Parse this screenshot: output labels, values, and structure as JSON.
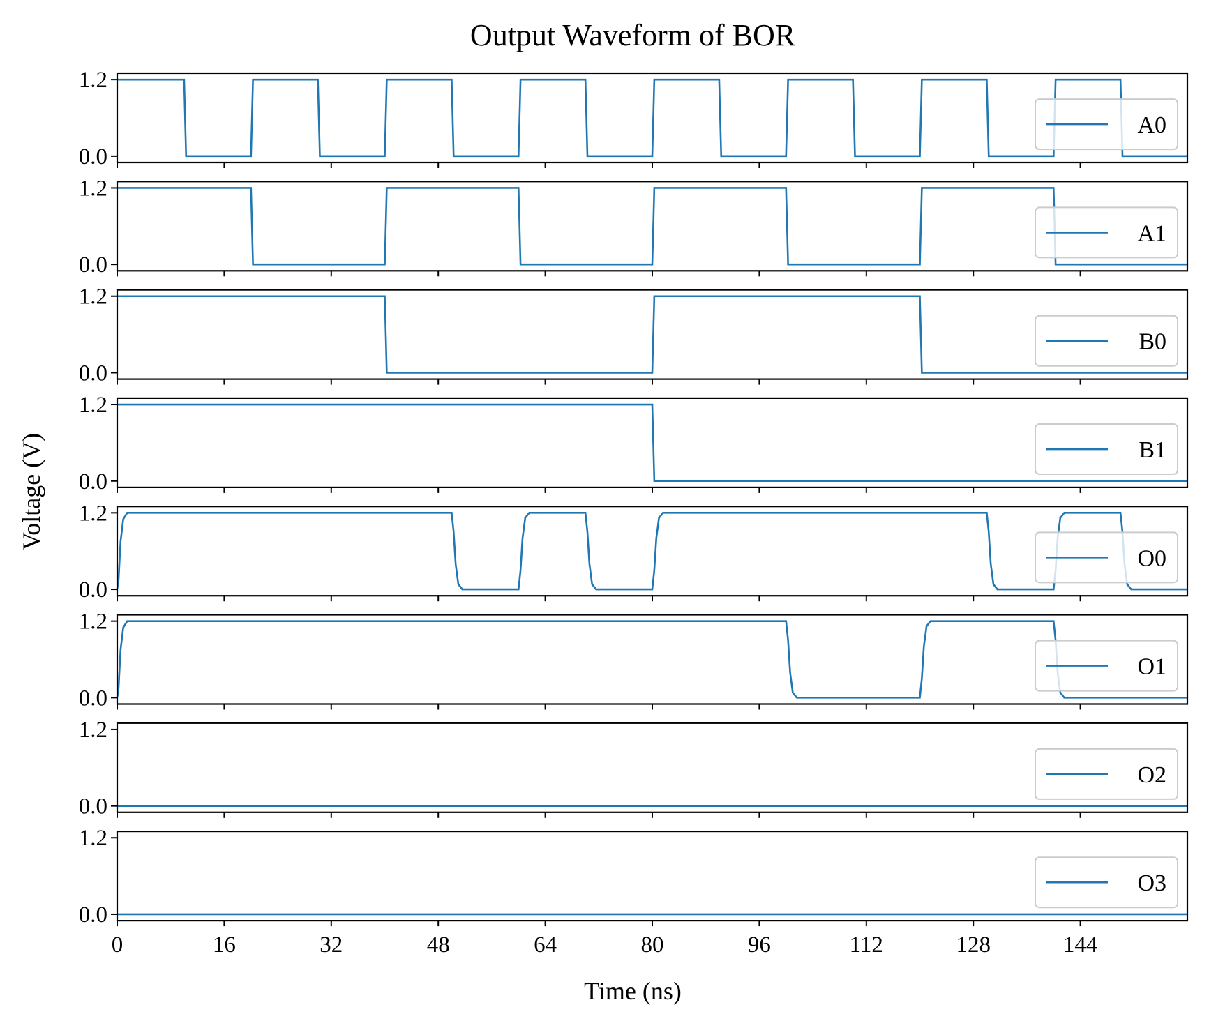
{
  "chart_data": {
    "type": "line",
    "title": "Output Waveform of BOR",
    "xlabel": "Time (ns)",
    "ylabel": "Voltage (V)",
    "xlim": [
      0,
      160
    ],
    "xticks": [
      0,
      16,
      32,
      48,
      64,
      80,
      96,
      112,
      128,
      144
    ],
    "ylim": [
      -0.1,
      1.3
    ],
    "yticks": [
      0.0,
      1.2
    ],
    "ytick_labels": [
      "0.0",
      "1.2"
    ],
    "grid": false,
    "legend_position": "center-right",
    "line_color": "#1f77b4",
    "series": [
      {
        "name": "A0",
        "x": [
          0,
          10,
          10.3,
          20,
          20.3,
          30,
          30.3,
          40,
          40.3,
          50,
          50.3,
          60,
          60.3,
          70,
          70.3,
          80,
          80.3,
          90,
          90.3,
          100,
          100.3,
          110,
          110.3,
          120,
          120.3,
          130,
          130.3,
          140,
          140.3,
          150,
          150.3,
          160
        ],
        "y": [
          1.2,
          1.2,
          0,
          0,
          1.2,
          1.2,
          0,
          0,
          1.2,
          1.2,
          0,
          0,
          1.2,
          1.2,
          0,
          0,
          1.2,
          1.2,
          0,
          0,
          1.2,
          1.2,
          0,
          0,
          1.2,
          1.2,
          0,
          0,
          1.2,
          1.2,
          0,
          0
        ]
      },
      {
        "name": "A1",
        "x": [
          0,
          20,
          20.3,
          40,
          40.3,
          60,
          60.3,
          80,
          80.3,
          100,
          100.3,
          120,
          120.3,
          140,
          140.3,
          160
        ],
        "y": [
          1.2,
          1.2,
          0,
          0,
          1.2,
          1.2,
          0,
          0,
          1.2,
          1.2,
          0,
          0,
          1.2,
          1.2,
          0,
          0
        ]
      },
      {
        "name": "B0",
        "x": [
          0,
          40,
          40.3,
          80,
          80.3,
          120,
          120.3,
          160
        ],
        "y": [
          1.2,
          1.2,
          0,
          0,
          1.2,
          1.2,
          0,
          0
        ]
      },
      {
        "name": "B1",
        "x": [
          0,
          80,
          80.3,
          160
        ],
        "y": [
          1.2,
          1.2,
          0,
          0
        ]
      },
      {
        "name": "O0",
        "x": [
          0,
          0.2,
          0.5,
          0.9,
          1.5,
          50,
          50.3,
          50.6,
          51,
          51.6,
          60,
          60.3,
          60.6,
          61,
          61.6,
          70,
          70.3,
          70.6,
          71,
          71.6,
          80,
          80.3,
          80.6,
          81,
          81.6,
          130,
          130.3,
          130.6,
          131,
          131.6,
          140,
          140.3,
          140.6,
          141,
          141.6,
          150,
          150.3,
          150.6,
          151,
          151.6,
          160
        ],
        "y": [
          0,
          0.15,
          0.75,
          1.1,
          1.2,
          1.2,
          0.9,
          0.4,
          0.08,
          0,
          0,
          0.3,
          0.8,
          1.12,
          1.2,
          1.2,
          0.9,
          0.4,
          0.08,
          0,
          0,
          0.3,
          0.8,
          1.12,
          1.2,
          1.2,
          0.9,
          0.4,
          0.08,
          0,
          0,
          0.3,
          0.8,
          1.12,
          1.2,
          1.2,
          0.9,
          0.4,
          0.08,
          0,
          0
        ]
      },
      {
        "name": "O1",
        "x": [
          0,
          0.2,
          0.5,
          0.9,
          1.5,
          100,
          100.3,
          100.6,
          101,
          101.6,
          120,
          120.3,
          120.6,
          121,
          121.6,
          140,
          140.3,
          140.6,
          141,
          141.6,
          160
        ],
        "y": [
          0,
          0.15,
          0.75,
          1.1,
          1.2,
          1.2,
          0.9,
          0.4,
          0.08,
          0,
          0,
          0.3,
          0.8,
          1.12,
          1.2,
          1.2,
          0.9,
          0.4,
          0.08,
          0,
          0
        ]
      },
      {
        "name": "O2",
        "x": [
          0,
          160
        ],
        "y": [
          0,
          0
        ]
      },
      {
        "name": "O3",
        "x": [
          0,
          160
        ],
        "y": [
          0,
          0
        ]
      }
    ]
  }
}
